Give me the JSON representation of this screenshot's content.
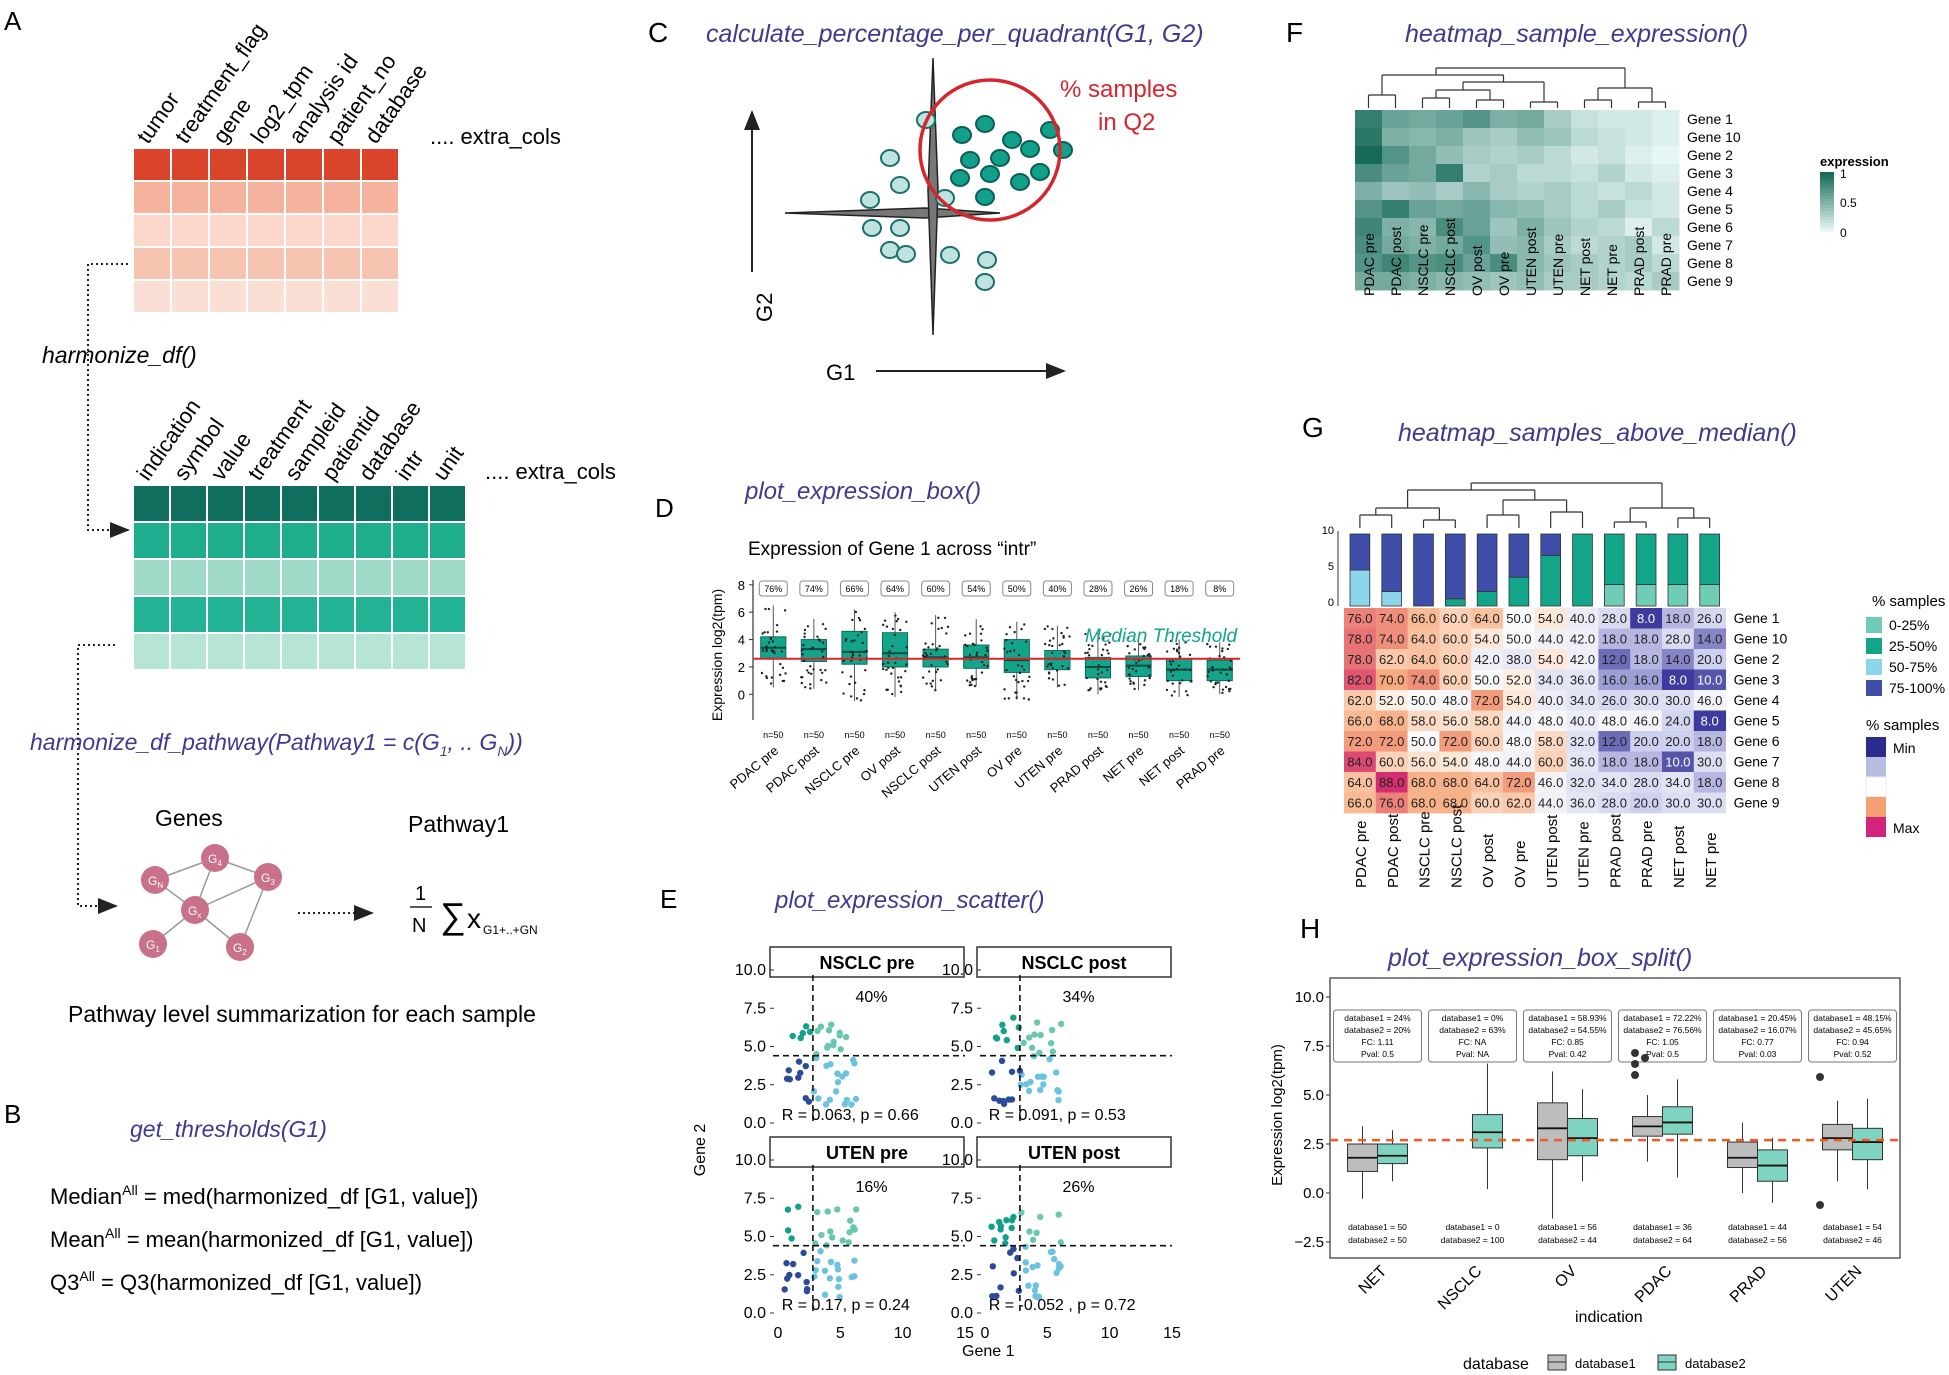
{
  "panels": {
    "A": {
      "letter": "A",
      "raw_cols": [
        "tumor",
        "treatment_flag",
        "gene",
        "log2_tpm",
        "analysis id",
        "patient_no",
        "database"
      ],
      "raw_extra": ".... extra_cols",
      "func1": "harmonize_df()",
      "harm_cols": [
        "indication",
        "symbol",
        "value",
        "treatment",
        "sampleid",
        "patientid",
        "database",
        "intr",
        "unit"
      ],
      "harm_extra": ".... extra_cols",
      "func2": "harmonize_df_pathway(Pathway1 = c(G",
      "func2_sub1": "1",
      "func2_mid": ", .. G",
      "func2_subN": "N",
      "func2_end": "))",
      "genes_label": "Genes",
      "pathway_label": "Pathway1",
      "gene_nodes": [
        "G",
        "G",
        "G",
        "G",
        "G",
        "G"
      ],
      "gene_node_subs": [
        "N",
        "4",
        "3",
        "x",
        "1",
        "2"
      ],
      "formula_num": "1",
      "formula_den": "N",
      "formula_sigma": "∑",
      "formula_x": "x",
      "formula_sub": "G1+..+GN",
      "summary": "Pathway level summarization for each sample"
    },
    "B": {
      "letter": "B",
      "func": "get_thresholds(G1)",
      "lines": [
        {
          "pre": "Median",
          "sup": "All",
          "post": " = med(harmonized_df [G1, value])"
        },
        {
          "pre": "Mean",
          "sup": "All",
          "post": " = mean(harmonized_df [G1, value])"
        },
        {
          "pre": "Q3",
          "sup": "All",
          "post": " = Q3(harmonized_df [G1, value])"
        }
      ]
    },
    "C": {
      "letter": "C",
      "func": "calculate_percentage_per_quadrant(G1, G2)",
      "annotation_l1": "% samples",
      "annotation_l2": "in Q2",
      "xlabel": "G1",
      "ylabel": "G2"
    },
    "D": {
      "letter": "D",
      "func": "plot_expression_box()",
      "title": "Expression of Gene 1 across “intr”",
      "ylabel": "Expression log2(tpm)",
      "threshold_label": "Median Threshold",
      "n_label": "n=50"
    },
    "E": {
      "letter": "E",
      "func": "plot_expression_scatter()",
      "xlabel": "Gene 1",
      "ylabel": "Gene 2"
    },
    "F": {
      "letter": "F",
      "func": "heatmap_sample_expression()",
      "legend_title": "expression",
      "legend_ticks": [
        "1",
        "0.5",
        "0"
      ]
    },
    "G": {
      "letter": "G",
      "func": "heatmap_samples_above_median()",
      "legend1_title": "% samples",
      "legend1_items": [
        "0-25%",
        "25-50%",
        "50-75%",
        "75-100%"
      ],
      "legend2_title": "% samples",
      "legend2_min": "Min",
      "legend2_max": "Max"
    },
    "H": {
      "letter": "H",
      "func": "plot_expression_box_split()",
      "ylabel": "Expression log2(tpm)",
      "xlabel": "indication",
      "legend_title": "database",
      "legend_items": [
        "database1",
        "database2"
      ]
    }
  },
  "colors": {
    "purple": "#3f3a8f",
    "red_header": "#d9442b",
    "teal_header": "#0f6e5e",
    "teal": "#13a58a",
    "red_line": "#d6262d",
    "gene_node": "#c9708a"
  },
  "chart_data": [
    {
      "id": "D",
      "type": "box",
      "title": "Expression of Gene 1 across “intr”",
      "ylabel": "Expression log2(tpm)",
      "categories": [
        "PDAC pre",
        "PDAC post",
        "NSCLC pre",
        "OV post",
        "NSCLC post",
        "UTEN post",
        "OV pre",
        "UTEN pre",
        "PRAD post",
        "NET pre",
        "NET post",
        "PRAD pre"
      ],
      "percent_labels": [
        "76%",
        "74%",
        "66%",
        "64%",
        "60%",
        "54%",
        "50%",
        "40%",
        "28%",
        "26%",
        "18%",
        "8%"
      ],
      "n_labels": [
        "n=50",
        "n=50",
        "n=50",
        "n=50",
        "n=50",
        "n=50",
        "n=50",
        "n=50",
        "n=50",
        "n=50",
        "n=50",
        "n=50"
      ],
      "q1": [
        2.6,
        2.4,
        2.2,
        2.0,
        2.0,
        1.9,
        1.6,
        1.8,
        1.2,
        1.3,
        1.0,
        1.0
      ],
      "median": [
        3.4,
        3.3,
        3.1,
        3.0,
        2.7,
        2.7,
        2.5,
        2.6,
        2.0,
        2.1,
        1.8,
        1.8
      ],
      "q3": [
        4.2,
        4.0,
        4.6,
        4.5,
        3.3,
        3.6,
        4.0,
        3.2,
        2.7,
        2.8,
        2.6,
        2.5
      ],
      "whisker_low": [
        0.5,
        0.4,
        -0.5,
        -0.2,
        0.3,
        0.6,
        -0.4,
        0.5,
        0.0,
        0.3,
        -0.2,
        0.0
      ],
      "whisker_high": [
        6.5,
        5.5,
        6.2,
        6.0,
        5.8,
        5.5,
        5.3,
        5.0,
        4.5,
        4.2,
        4.0,
        3.8
      ],
      "threshold": 2.6,
      "ylim": [
        -1,
        8.5
      ],
      "yticks": [
        0,
        2,
        4,
        6,
        8
      ]
    },
    {
      "id": "F",
      "type": "heatmap",
      "rows": [
        "Gene 1",
        "Gene 10",
        "Gene 2",
        "Gene 3",
        "Gene 4",
        "Gene 5",
        "Gene 6",
        "Gene 7",
        "Gene 8",
        "Gene 9"
      ],
      "cols": [
        "PDAC pre",
        "PDAC post",
        "NSCLC pre",
        "NSCLC post",
        "OV post",
        "OV pre",
        "UTEN post",
        "UTEN pre",
        "NET post",
        "NET pre",
        "PRAD post",
        "PRAD pre"
      ],
      "values": [
        [
          0.85,
          0.6,
          0.55,
          0.6,
          0.7,
          0.5,
          0.55,
          0.3,
          0.15,
          0.1,
          0.1,
          0.05
        ],
        [
          0.9,
          0.5,
          0.45,
          0.5,
          0.35,
          0.3,
          0.4,
          0.35,
          0.2,
          0.15,
          0.1,
          0.05
        ],
        [
          1.0,
          0.7,
          0.55,
          0.4,
          0.3,
          0.25,
          0.3,
          0.2,
          0.1,
          0.15,
          0.05,
          0.0
        ],
        [
          0.75,
          0.6,
          0.55,
          0.85,
          0.25,
          0.3,
          0.2,
          0.2,
          0.15,
          0.25,
          0.1,
          0.05
        ],
        [
          0.5,
          0.35,
          0.4,
          0.3,
          0.45,
          0.3,
          0.25,
          0.3,
          0.2,
          0.15,
          0.2,
          0.1
        ],
        [
          0.7,
          0.85,
          0.6,
          0.55,
          0.6,
          0.45,
          0.4,
          0.3,
          0.2,
          0.3,
          0.15,
          0.1
        ],
        [
          0.8,
          0.5,
          0.45,
          0.75,
          0.6,
          0.35,
          0.5,
          0.35,
          0.25,
          0.2,
          0.05,
          0.2
        ],
        [
          0.75,
          0.55,
          0.5,
          0.55,
          0.7,
          0.4,
          0.45,
          0.3,
          0.2,
          0.25,
          0.3,
          0.1
        ],
        [
          0.7,
          0.8,
          0.7,
          0.75,
          0.6,
          0.75,
          0.45,
          0.35,
          0.3,
          0.25,
          0.3,
          0.2
        ],
        [
          0.55,
          0.55,
          0.5,
          0.45,
          0.4,
          0.35,
          0.4,
          0.3,
          0.3,
          0.25,
          0.2,
          0.3
        ]
      ],
      "legend_range": [
        0,
        1
      ]
    },
    {
      "id": "G",
      "type": "heatmap",
      "rows": [
        "Gene 1",
        "Gene 10",
        "Gene 2",
        "Gene 3",
        "Gene 4",
        "Gene 5",
        "Gene 6",
        "Gene 7",
        "Gene 8",
        "Gene 9"
      ],
      "cols": [
        "PDAC pre",
        "PDAC post",
        "NSCLC pre",
        "NSCLC post",
        "OV post",
        "OV pre",
        "UTEN post",
        "UTEN pre",
        "PRAD post",
        "PRAD pre",
        "NET post",
        "NET pre"
      ],
      "values": [
        [
          "76.0",
          "74.0",
          "66.0",
          "60.0",
          "64.0",
          "50.0",
          "54.0",
          "40.0",
          "28.0",
          "8.0",
          "18.0",
          "26.0"
        ],
        [
          "78.0",
          "74.0",
          "64.0",
          "60.0",
          "54.0",
          "50.0",
          "44.0",
          "42.0",
          "18.0",
          "18.0",
          "28.0",
          "14.0"
        ],
        [
          "78.0",
          "62.0",
          "64.0",
          "60.0",
          "42.0",
          "38.0",
          "54.0",
          "42.0",
          "12.0",
          "18.0",
          "14.0",
          "20.0"
        ],
        [
          "82.0",
          "70.0",
          "74.0",
          "60.0",
          "50.0",
          "52.0",
          "34.0",
          "36.0",
          "16.0",
          "16.0",
          "8.0",
          "10.0"
        ],
        [
          "62.0",
          "52.0",
          "50.0",
          "48.0",
          "72.0",
          "54.0",
          "40.0",
          "34.0",
          "26.0",
          "30.0",
          "30.0",
          "46.0"
        ],
        [
          "66.0",
          "68.0",
          "58.0",
          "56.0",
          "58.0",
          "44.0",
          "48.0",
          "40.0",
          "48.0",
          "46.0",
          "24.0",
          "8.0"
        ],
        [
          "72.0",
          "72.0",
          "50.0",
          "72.0",
          "60.0",
          "48.0",
          "58.0",
          "32.0",
          "12.0",
          "20.0",
          "20.0",
          "18.0"
        ],
        [
          "84.0",
          "60.0",
          "56.0",
          "54.0",
          "48.0",
          "44.0",
          "60.0",
          "36.0",
          "18.0",
          "18.0",
          "10.0",
          "30.0"
        ],
        [
          "64.0",
          "88.0",
          "68.0",
          "68.0",
          "64.0",
          "72.0",
          "46.0",
          "32.0",
          "34.0",
          "28.0",
          "34.0",
          "18.0"
        ],
        [
          "66.0",
          "76.0",
          "68.0",
          "68.0",
          "60.0",
          "62.0",
          "44.0",
          "36.0",
          "28.0",
          "20.0",
          "30.0",
          "30.0"
        ]
      ],
      "bar_yticks": [
        "0",
        "5",
        "10"
      ],
      "bar_composition": [
        [
          0,
          0,
          5,
          5
        ],
        [
          0,
          0,
          2,
          8
        ],
        [
          0,
          0,
          0,
          10
        ],
        [
          0,
          1,
          0,
          9
        ],
        [
          0,
          2,
          0,
          8
        ],
        [
          0,
          4,
          0,
          6
        ],
        [
          0,
          7,
          0,
          3
        ],
        [
          0,
          10,
          0,
          0
        ],
        [
          3,
          7,
          0,
          0
        ],
        [
          3,
          7,
          0,
          0
        ],
        [
          3,
          7,
          0,
          0
        ],
        [
          3,
          7,
          0,
          0
        ]
      ]
    },
    {
      "id": "E",
      "type": "scatter",
      "facets": [
        {
          "title": "NSCLC pre",
          "percent": "40%",
          "stat_r": "R = 0.063, p = 0.66"
        },
        {
          "title": "NSCLC post",
          "percent": "34%",
          "stat_r": "R = 0.091, p = 0.53"
        },
        {
          "title": "UTEN pre",
          "percent": "16%",
          "stat_r": "R = 0.17, p = 0.24"
        },
        {
          "title": "UTEN post",
          "percent": "26%",
          "stat_r": "R = -0.052 , p = 0.72"
        }
      ],
      "xticks": [
        "0",
        "5",
        "10",
        "15"
      ],
      "yticks": [
        "0.0",
        "2.5",
        "5.0",
        "7.5",
        "10.0"
      ],
      "xlim": [
        0,
        15
      ],
      "ylim": [
        0,
        10
      ],
      "x_threshold": 2.8,
      "y_threshold": 4.4,
      "xlabel": "Gene 1",
      "ylabel": "Gene 2"
    },
    {
      "id": "H",
      "type": "box",
      "categories": [
        "NET",
        "NSCLC",
        "OV",
        "PDAC",
        "PRAD",
        "UTEN"
      ],
      "series": [
        {
          "name": "database1",
          "q1": [
            1.1,
            null,
            1.7,
            2.9,
            1.3,
            2.2
          ],
          "median": [
            1.8,
            null,
            3.3,
            3.4,
            1.8,
            2.8
          ],
          "q3": [
            2.5,
            null,
            4.6,
            3.9,
            2.6,
            3.5
          ],
          "lo": [
            -0.3,
            null,
            -1.3,
            1.6,
            0.0,
            0.6
          ],
          "hi": [
            3.4,
            null,
            6.2,
            5.0,
            3.6,
            4.7
          ]
        },
        {
          "name": "database2",
          "q1": [
            1.5,
            2.3,
            1.9,
            3.0,
            0.6,
            1.7
          ],
          "median": [
            1.9,
            3.1,
            2.8,
            3.6,
            1.4,
            2.6
          ],
          "q3": [
            2.5,
            4.0,
            3.8,
            4.4,
            2.2,
            3.3
          ],
          "lo": [
            0.6,
            0.2,
            0.6,
            0.8,
            -0.5,
            0.2
          ],
          "hi": [
            3.2,
            6.6,
            5.3,
            5.8,
            2.8,
            4.8
          ]
        }
      ],
      "annotations": [
        [
          "database1 = 24%",
          "database2 = 20%",
          "FC: 1.11",
          "Pval: 0.5"
        ],
        [
          "database1 = 0%",
          "database2 = 63%",
          "FC: NA",
          "Pval: NA"
        ],
        [
          "database1 = 58.93%",
          "database2 = 54.55%",
          "FC: 0.85",
          "Pval: 0.42"
        ],
        [
          "database1 = 72.22%",
          "database2 = 76.56%",
          "FC: 1.05",
          "Pval: 0.5"
        ],
        [
          "database1 = 20.45%",
          "database2 = 16.07%",
          "FC: 0.77",
          "Pval: 0.03"
        ],
        [
          "database1 = 48.15%",
          "database2 = 45.65%",
          "FC: 0.94",
          "Pval: 0.52"
        ]
      ],
      "n_labels": [
        [
          "database1 = 50",
          "database2 = 50"
        ],
        [
          "database1 = 0",
          "database2 = 100"
        ],
        [
          "database1 = 56",
          "database2 = 44"
        ],
        [
          "database1 = 36",
          "database2 = 64"
        ],
        [
          "database1 = 44",
          "database2 = 56"
        ],
        [
          "database1 = 54",
          "database2 = 46"
        ]
      ],
      "threshold": 2.7,
      "ylim": [
        -2.5,
        10
      ],
      "yticks": [
        "10.0",
        "7.5",
        "5.0",
        "2.5",
        "0.0",
        "−2.5"
      ],
      "xlabel": "indication",
      "ylabel": "Expression log2(tpm)"
    }
  ]
}
